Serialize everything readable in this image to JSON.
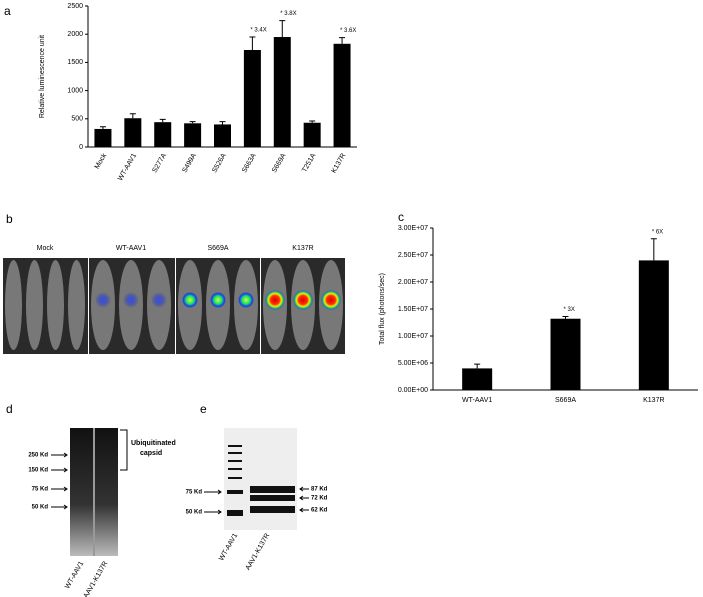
{
  "chart_data": [
    {
      "type": "bar",
      "panel": "a",
      "ylabel": "Relative luminescence unit",
      "categories": [
        "Mock",
        "WT-AAV1",
        "S277A",
        "S499A",
        "S526A",
        "S663A",
        "S669A",
        "T251A",
        "K137R"
      ],
      "values": [
        320,
        510,
        440,
        420,
        400,
        1720,
        1950,
        430,
        1830
      ],
      "errors": [
        40,
        80,
        50,
        30,
        50,
        230,
        290,
        30,
        110
      ],
      "annotations": [
        {
          "category": "S663A",
          "text": "* 3.4X"
        },
        {
          "category": "S669A",
          "text": "* 3.8X"
        },
        {
          "category": "K137R",
          "text": "* 3.6X"
        }
      ],
      "color": "#000000",
      "ylim": [
        0,
        2500
      ],
      "yticks": [
        0,
        500,
        1000,
        1500,
        2000,
        2500
      ]
    },
    {
      "type": "bar",
      "panel": "c",
      "ylabel": "Total flux (photons/sec)",
      "categories": [
        "WT-AAV1",
        "S669A",
        "K137R"
      ],
      "values": [
        4000000,
        13200000,
        24000000
      ],
      "errors": [
        800000,
        400000,
        4000000
      ],
      "annotations": [
        {
          "category": "S669A",
          "text": "* 3X"
        },
        {
          "category": "K137R",
          "text": "* 6X"
        }
      ],
      "color": "#000000",
      "ylim": [
        0,
        30000000
      ],
      "yticks": [
        {
          "value": 0,
          "label": "0.00E+00"
        },
        {
          "value": 5000000,
          "label": "5.00E+06"
        },
        {
          "value": 10000000,
          "label": "1.00E+07"
        },
        {
          "value": 15000000,
          "label": "1.50E+07"
        },
        {
          "value": 20000000,
          "label": "2.00E+07"
        },
        {
          "value": 25000000,
          "label": "2.50E+07"
        },
        {
          "value": 30000000,
          "label": "3.00E+07"
        }
      ]
    }
  ],
  "panel_b": {
    "panel": "b",
    "labels": [
      "Mock",
      "WT-AAV1",
      "S669A",
      "K137R"
    ]
  },
  "panel_d": {
    "panel": "d",
    "markers": [
      "250 Kd",
      "150 Kd",
      "75 Kd",
      "50 Kd"
    ],
    "bracket": [
      "Ubiquitinated",
      "capsid"
    ],
    "lanes": [
      "WT-AAV1",
      "AAV1-K137R"
    ]
  },
  "panel_e": {
    "panel": "e",
    "markers_left": [
      "75 Kd",
      "50 Kd"
    ],
    "markers_right": [
      "87 Kd",
      "72 Kd",
      "62 Kd"
    ],
    "lanes": [
      "WT-AAV1",
      "AAV1-K137R"
    ]
  }
}
